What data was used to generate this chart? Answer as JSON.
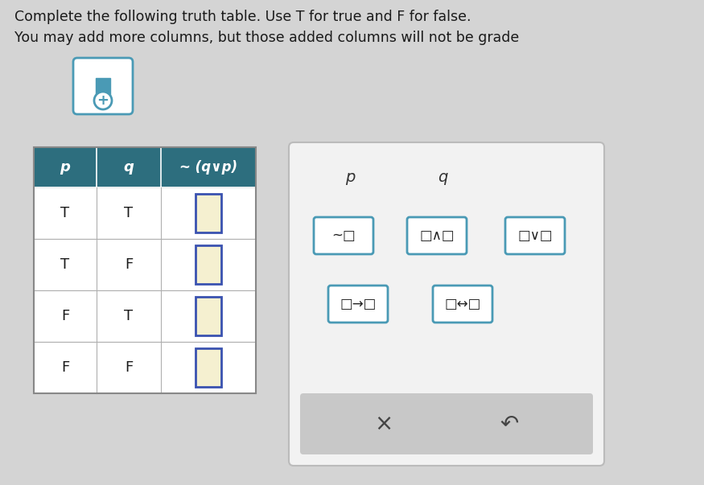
{
  "title_line1": "Complete the following truth table. Use T for true and F for false.",
  "title_line2": "You may add more columns, but those added columns will not be grade",
  "bg_color": "#d4d4d4",
  "table_header_bg": "#2d6e7e",
  "table_header_cols": [
    "p",
    "q",
    "~ (q∨p)"
  ],
  "table_rows": [
    [
      "T",
      "T"
    ],
    [
      "T",
      "F"
    ],
    [
      "F",
      "T"
    ],
    [
      "F",
      "F"
    ]
  ],
  "input_box_fill": "#f5f0d0",
  "input_box_border": "#3a52b0",
  "panel_bg": "#f2f2f2",
  "panel_border": "#bbbbbb",
  "add_btn_fill": "white",
  "add_btn_border": "#3a8aaa",
  "add_btn_inner_fill": "#4a9ab5",
  "op_box_fill": "white",
  "op_box_border": "#4a9ab5",
  "cancel_bar_fill": "#c8c8c8",
  "cancel_symbol": "×",
  "undo_symbol": "↶"
}
